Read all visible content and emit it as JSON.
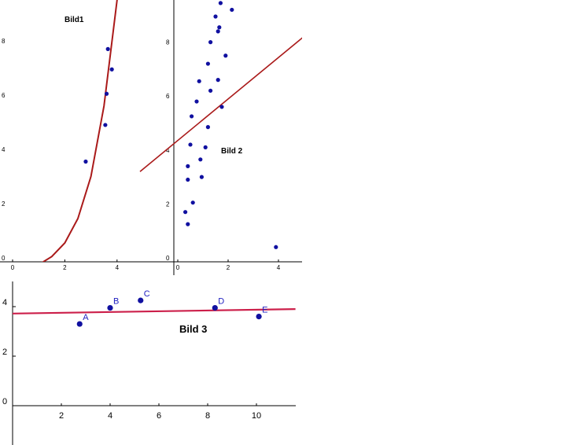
{
  "colors": {
    "point": "#1010a0",
    "curve1": "#aa1a1a",
    "line2": "#aa1a1a",
    "line3": "#cc1f4a",
    "axis": "#000000"
  },
  "chart_data": [
    {
      "type": "scatter",
      "title": "Bild1",
      "xlim": [
        -0.5,
        5.5
      ],
      "ylim": [
        -0.5,
        9.7
      ],
      "xticks": [
        "0",
        "2",
        "4"
      ],
      "yticks": [
        "0",
        "2",
        "4",
        "6",
        "8"
      ],
      "series": [
        {
          "kind": "points",
          "x": [
            2.8,
            3.55,
            3.6,
            3.65,
            3.8
          ],
          "y": [
            3.55,
            4.9,
            6.05,
            7.7,
            6.95
          ]
        },
        {
          "kind": "curve",
          "formula": "exponential",
          "x": [
            -0.5,
            0,
            0.5,
            1,
            1.5,
            2,
            2.5,
            3,
            3.5,
            4,
            4.1
          ],
          "y": [
            -0.6,
            -0.55,
            -0.42,
            -0.25,
            0.05,
            0.55,
            1.45,
            3.0,
            5.6,
            9.5,
            10.5
          ]
        }
      ]
    },
    {
      "type": "scatter",
      "title": "Bild 2",
      "xlim": [
        -1.5,
        5
      ],
      "ylim": [
        -0.5,
        9.7
      ],
      "xticks": [
        "0",
        "2",
        "4"
      ],
      "yticks": [
        "0",
        "2",
        "4",
        "6",
        "8"
      ],
      "series": [
        {
          "kind": "points",
          "x": [
            0.3,
            0.4,
            0.6,
            0.4,
            0.95,
            0.4,
            0.9,
            0.5,
            1.1,
            1.2,
            0.55,
            0.75,
            1.75,
            1.3,
            0.85,
            1.6,
            1.2,
            1.9,
            1.3,
            1.6,
            1.65,
            1.5,
            2.15,
            1.7,
            3.9
          ],
          "y": [
            1.7,
            1.25,
            2.05,
            2.9,
            3.0,
            3.4,
            3.65,
            4.2,
            4.1,
            4.85,
            5.25,
            5.8,
            5.6,
            6.2,
            6.55,
            6.6,
            7.2,
            7.5,
            8.0,
            8.4,
            8.55,
            8.95,
            9.2,
            9.45,
            0.4
          ]
        },
        {
          "kind": "line",
          "x": [
            -1.5,
            5
          ],
          "y": [
            3.2,
            8.2
          ]
        }
      ]
    },
    {
      "type": "scatter",
      "title": "Bild 3",
      "xlim": [
        0,
        11.6
      ],
      "ylim": [
        -0.4,
        5.2
      ],
      "xticks": [
        "2",
        "4",
        "6",
        "8",
        "10"
      ],
      "yticks": [
        "0",
        "2",
        "4"
      ],
      "series": [
        {
          "kind": "points",
          "labels": [
            "A",
            "B",
            "C",
            "D",
            "E"
          ],
          "x": [
            2.75,
            4.0,
            5.25,
            8.3,
            10.1
          ],
          "y": [
            3.3,
            3.95,
            4.25,
            3.95,
            3.6
          ]
        },
        {
          "kind": "line",
          "x": [
            0,
            11.6
          ],
          "y": [
            3.72,
            3.9
          ]
        }
      ]
    }
  ]
}
